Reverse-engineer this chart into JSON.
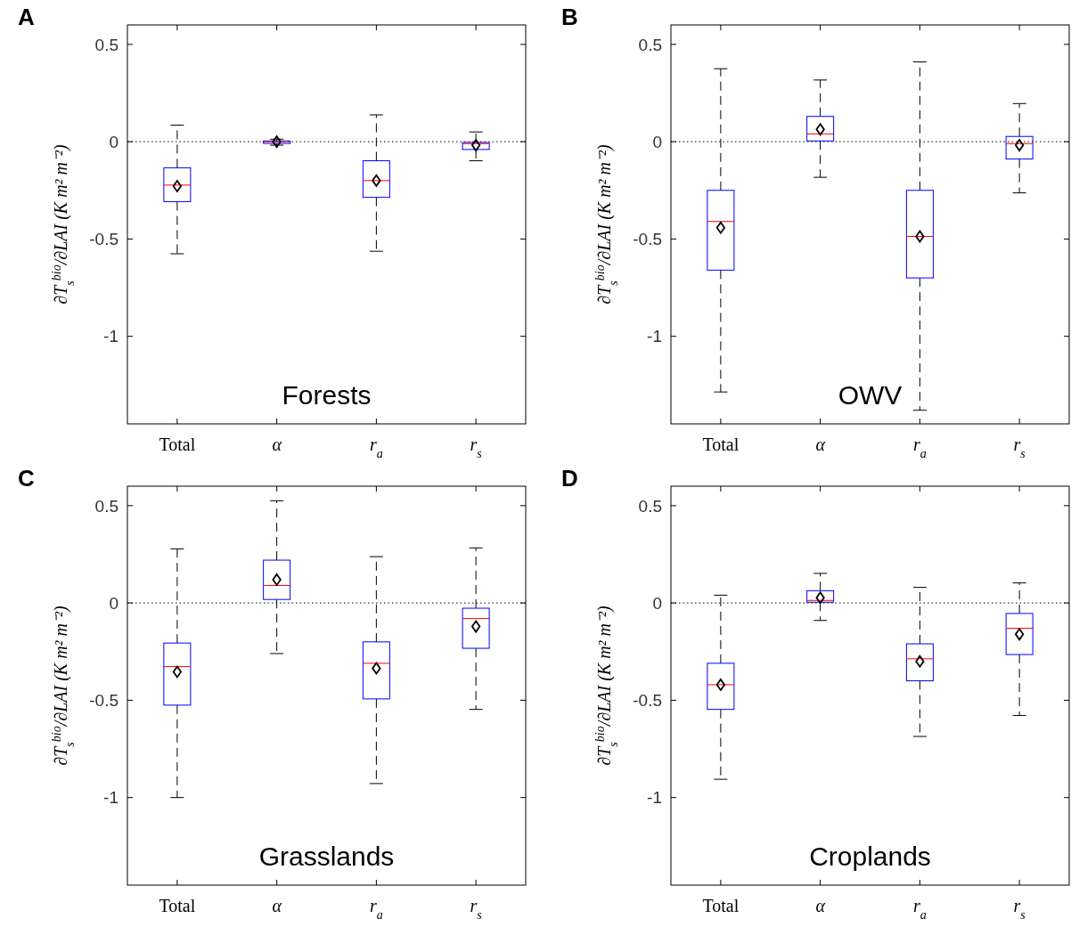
{
  "chart_data": [
    {
      "type": "box",
      "title": "A",
      "annotations": [
        "Forests"
      ],
      "ylabel": "∂T$_{s}$$^{bio}$/∂LAI (K m² m⁻²)",
      "categories": [
        "Total",
        "α",
        "r$_{a}$",
        "r$_{s}$"
      ],
      "ylim": [
        -1.45,
        0.6
      ],
      "yticks": [
        0.5,
        0,
        -0.5,
        -1
      ],
      "color": "#0000ff",
      "marker": "diamond",
      "ref_lines": [
        {
          "axis": "y",
          "value": 0,
          "line_style": "dotted",
          "color": "#000000"
        }
      ],
      "boxes": [
        {
          "low": -0.576,
          "q1": -0.308,
          "median": -0.223,
          "q3": -0.134,
          "high": 0.085,
          "mean": -0.228
        },
        {
          "low": -0.018,
          "q1": -0.009,
          "median": 0,
          "q3": 0.004,
          "high": 0.013,
          "mean": 0
        },
        {
          "low": -0.563,
          "q1": -0.286,
          "median": -0.2,
          "q3": -0.098,
          "high": 0.138,
          "mean": -0.2
        },
        {
          "low": -0.098,
          "q1": -0.04,
          "median": -0.01,
          "q3": -0.004,
          "high": 0.05,
          "mean": -0.018
        }
      ]
    },
    {
      "type": "box",
      "title": "B",
      "annotations": [
        "OWV"
      ],
      "ylabel": "∂T$_{s}$$^{bio}$/∂LAI (K m² m⁻²)",
      "categories": [
        "Total",
        "α",
        "r$_{a}$",
        "r$_{s}$"
      ],
      "ylim": [
        -1.45,
        0.6
      ],
      "yticks": [
        0.5,
        0,
        -0.5,
        -1
      ],
      "color": "#0000ff",
      "marker": "diamond",
      "ref_lines": [
        {
          "axis": "y",
          "value": 0,
          "line_style": "dotted",
          "color": "#000000"
        }
      ],
      "boxes": [
        {
          "low": -1.286,
          "q1": -0.66,
          "median": -0.41,
          "q3": -0.25,
          "high": 0.375,
          "mean": -0.442
        },
        {
          "low": -0.183,
          "q1": 0.004,
          "median": 0.04,
          "q3": 0.13,
          "high": 0.317,
          "mean": 0.063
        },
        {
          "low": -1.38,
          "q1": -0.7,
          "median": -0.487,
          "q3": -0.25,
          "high": 0.41,
          "mean": -0.487
        },
        {
          "low": -0.263,
          "q1": -0.089,
          "median": -0.01,
          "q3": 0.027,
          "high": 0.196,
          "mean": -0.018
        }
      ]
    },
    {
      "type": "box",
      "title": "C",
      "annotations": [
        "Grasslands"
      ],
      "ylabel": "∂T$_{s}$$^{bio}$/∂LAI (K m² m⁻²)",
      "categories": [
        "Total",
        "α",
        "r$_{a}$",
        "r$_{s}$"
      ],
      "ylim": [
        -1.45,
        0.6
      ],
      "yticks": [
        0.5,
        0,
        -0.5,
        -1
      ],
      "color": "#0000ff",
      "marker": "diamond",
      "ref_lines": [
        {
          "axis": "y",
          "value": 0,
          "line_style": "dotted",
          "color": "#000000"
        }
      ],
      "boxes": [
        {
          "low": -1.0,
          "q1": -0.525,
          "median": -0.327,
          "q3": -0.206,
          "high": 0.278,
          "mean": -0.354
        },
        {
          "low": -0.26,
          "q1": 0.018,
          "median": 0.09,
          "q3": 0.22,
          "high": 0.525,
          "mean": 0.12
        },
        {
          "low": -0.928,
          "q1": -0.493,
          "median": -0.31,
          "q3": -0.2,
          "high": 0.238,
          "mean": -0.336
        },
        {
          "low": -0.547,
          "q1": -0.233,
          "median": -0.08,
          "q3": -0.027,
          "high": 0.283,
          "mean": -0.121
        }
      ]
    },
    {
      "type": "box",
      "title": "D",
      "annotations": [
        "Croplands"
      ],
      "ylabel": "∂T$_{s}$$^{bio}$/∂LAI (K m² m⁻²)",
      "categories": [
        "Total",
        "α",
        "r$_{a}$",
        "r$_{s}$"
      ],
      "ylim": [
        -1.45,
        0.6
      ],
      "yticks": [
        0.5,
        0,
        -0.5,
        -1
      ],
      "color": "#0000ff",
      "marker": "diamond",
      "ref_lines": [
        {
          "axis": "y",
          "value": 0,
          "line_style": "dotted",
          "color": "#000000"
        }
      ],
      "boxes": [
        {
          "low": -0.906,
          "q1": -0.547,
          "median": -0.42,
          "q3": -0.31,
          "high": 0.04,
          "mean": -0.42
        },
        {
          "low": -0.09,
          "q1": 0.004,
          "median": 0.013,
          "q3": 0.063,
          "high": 0.152,
          "mean": 0.027
        },
        {
          "low": -0.686,
          "q1": -0.4,
          "median": -0.287,
          "q3": -0.21,
          "high": 0.08,
          "mean": -0.3
        },
        {
          "low": -0.578,
          "q1": -0.265,
          "median": -0.13,
          "q3": -0.054,
          "high": 0.103,
          "mean": -0.161
        }
      ]
    }
  ]
}
